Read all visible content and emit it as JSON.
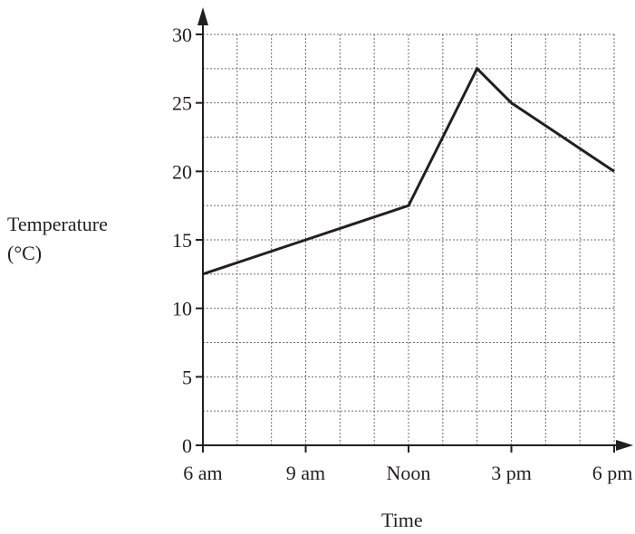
{
  "chart_data": {
    "type": "line",
    "title": "",
    "xlabel": "Time",
    "ylabel_lines": [
      "Temperature",
      "(°C)"
    ],
    "x_ticks": [
      {
        "hour": 6,
        "label": "6 am"
      },
      {
        "hour": 9,
        "label": "9 am"
      },
      {
        "hour": 12,
        "label": "Noon"
      },
      {
        "hour": 15,
        "label": "3 pm"
      },
      {
        "hour": 18,
        "label": "6 pm"
      }
    ],
    "y_ticks": [
      0,
      5,
      10,
      15,
      20,
      25,
      30
    ],
    "xlim": [
      6,
      18
    ],
    "ylim": [
      0,
      30
    ],
    "grid": true,
    "series": [
      {
        "points": [
          {
            "x": 6,
            "y": 12.5
          },
          {
            "x": 9,
            "y": 15
          },
          {
            "x": 12,
            "y": 17.5
          },
          {
            "x": 14,
            "y": 27.5
          },
          {
            "x": 15,
            "y": 25
          },
          {
            "x": 18,
            "y": 20
          }
        ]
      }
    ],
    "colors": {
      "line": "#231f20",
      "grid": "#6d6e71",
      "axis": "#231f20"
    }
  }
}
